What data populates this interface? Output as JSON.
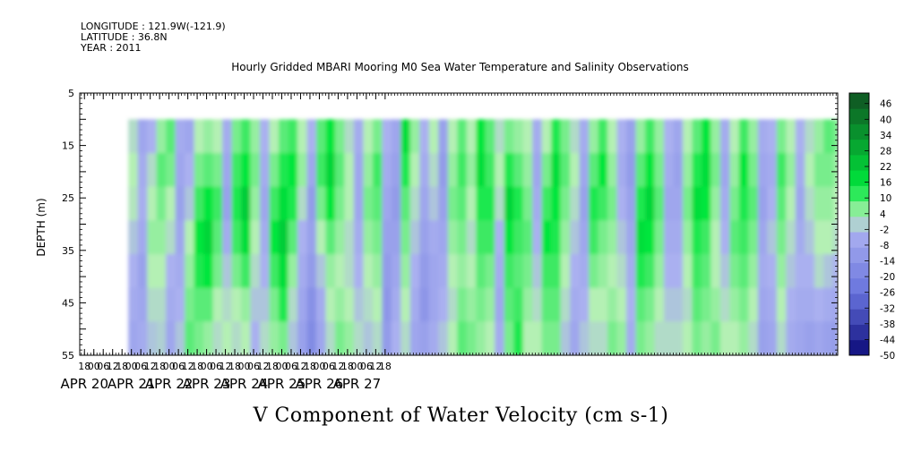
{
  "header": {
    "longitude": "LONGITUDE : 121.9W(-121.9)",
    "latitude": "LATITUDE : 36.8N",
    "year": "YEAR : 2011"
  },
  "colors": {
    "negative_strong": "#0a0a78",
    "negative_mid": "#6672dc",
    "negative_weak": "#aab0f0",
    "positive_weak": "#b4f0b4",
    "positive_mid": "#00e63c",
    "positive_strong": "#0f5a23",
    "missing": "#ffffff"
  },
  "chart_data": {
    "type": "heatmap",
    "title": "Hourly Gridded MBARI Mooring M0 Sea Water Temperature and Salinity Observations",
    "xlabel": "",
    "ylabel": "DEPTH (m)",
    "variable_label": "V Component of Water Velocity (cm s-1)",
    "x_hour_ticks": [
      "18",
      "00",
      "06",
      "12",
      "18",
      "00",
      "06",
      "12",
      "18",
      "00",
      "06",
      "12",
      "18",
      "00",
      "06",
      "12",
      "18",
      "00",
      "06",
      "12",
      "18",
      "00",
      "06",
      "12",
      "18",
      "00",
      "06",
      "12",
      "18",
      "00",
      "06",
      "12",
      "18"
    ],
    "x_day_labels": [
      "APR 20",
      "APR 21",
      "APR 22",
      "APR 23",
      "APR 24",
      "APR 25",
      "APR 26",
      "APR 27"
    ],
    "x_range_hours": [
      -9,
      475
    ],
    "data_start_hour": 22,
    "y_ticks": [
      5,
      15,
      25,
      35,
      45,
      55
    ],
    "y_range": [
      5,
      55
    ],
    "data_depth_range": [
      10,
      55
    ],
    "y_reversed": true,
    "colorbar_labels": [
      "46",
      "40",
      "34",
      "28",
      "22",
      "16",
      "10",
      "4",
      "-2",
      "-8",
      "-14",
      "-20",
      "-26",
      "-32",
      "-38",
      "-44",
      "-50"
    ],
    "colorbar_range": [
      -50,
      50
    ],
    "colorbar_step": 6,
    "columns": [
      {
        "h": 22,
        "v": [
          2,
          4,
          3,
          0,
          -2,
          -4,
          -6
        ]
      },
      {
        "h": 28,
        "v": [
          -6,
          -4,
          -3,
          -5,
          -8,
          -6,
          -4
        ]
      },
      {
        "h": 34,
        "v": [
          -2,
          2,
          4,
          6,
          4,
          2,
          0
        ]
      },
      {
        "h": 40,
        "v": [
          6,
          10,
          8,
          6,
          4,
          2,
          1
        ]
      },
      {
        "h": 46,
        "v": [
          10,
          8,
          4,
          2,
          -2,
          -4,
          -6
        ]
      },
      {
        "h": 52,
        "v": [
          -4,
          -6,
          -8,
          -6,
          -4,
          -2,
          0
        ]
      },
      {
        "h": 58,
        "v": [
          -6,
          -2,
          0,
          4,
          6,
          8,
          10
        ]
      },
      {
        "h": 64,
        "v": [
          4,
          8,
          12,
          16,
          14,
          10,
          8
        ]
      },
      {
        "h": 70,
        "v": [
          6,
          10,
          16,
          20,
          16,
          10,
          6
        ]
      },
      {
        "h": 76,
        "v": [
          4,
          8,
          12,
          10,
          8,
          4,
          2
        ]
      },
      {
        "h": 82,
        "v": [
          -4,
          -6,
          -8,
          -4,
          0,
          2,
          4
        ]
      },
      {
        "h": 88,
        "v": [
          8,
          12,
          14,
          12,
          8,
          4,
          2
        ]
      },
      {
        "h": 94,
        "v": [
          12,
          16,
          22,
          18,
          12,
          6,
          4
        ]
      },
      {
        "h": 100,
        "v": [
          6,
          8,
          6,
          4,
          2,
          0,
          -2
        ]
      },
      {
        "h": 106,
        "v": [
          -2,
          -4,
          -6,
          -4,
          -2,
          0,
          2
        ]
      },
      {
        "h": 112,
        "v": [
          4,
          8,
          12,
          16,
          12,
          8,
          6
        ]
      },
      {
        "h": 118,
        "v": [
          10,
          14,
          18,
          22,
          18,
          14,
          8
        ]
      },
      {
        "h": 124,
        "v": [
          12,
          16,
          14,
          10,
          6,
          2,
          0
        ]
      },
      {
        "h": 130,
        "v": [
          4,
          6,
          2,
          -2,
          -4,
          -6,
          -8
        ]
      },
      {
        "h": 136,
        "v": [
          -2,
          -6,
          -10,
          -8,
          -10,
          -14,
          -16
        ]
      },
      {
        "h": 142,
        "v": [
          10,
          12,
          8,
          4,
          0,
          -4,
          -6
        ]
      },
      {
        "h": 148,
        "v": [
          16,
          20,
          16,
          10,
          6,
          4,
          2
        ]
      },
      {
        "h": 154,
        "v": [
          8,
          10,
          8,
          6,
          4,
          6,
          8
        ]
      },
      {
        "h": 160,
        "v": [
          2,
          4,
          4,
          2,
          2,
          4,
          6
        ]
      },
      {
        "h": 166,
        "v": [
          -4,
          -6,
          -6,
          -4,
          -2,
          0,
          2
        ]
      },
      {
        "h": 172,
        "v": [
          4,
          6,
          8,
          6,
          4,
          2,
          0
        ]
      },
      {
        "h": 178,
        "v": [
          8,
          12,
          10,
          8,
          6,
          4,
          2
        ]
      },
      {
        "h": 184,
        "v": [
          -2,
          -4,
          -6,
          -8,
          -10,
          -12,
          -10
        ]
      },
      {
        "h": 190,
        "v": [
          -6,
          -8,
          -10,
          -8,
          -6,
          -4,
          -2
        ]
      },
      {
        "h": 196,
        "v": [
          18,
          14,
          10,
          8,
          6,
          4,
          2
        ]
      },
      {
        "h": 202,
        "v": [
          6,
          4,
          2,
          0,
          -2,
          -4,
          -6
        ]
      },
      {
        "h": 208,
        "v": [
          -2,
          -4,
          -6,
          -8,
          -10,
          -12,
          -8
        ]
      },
      {
        "h": 214,
        "v": [
          4,
          2,
          0,
          -4,
          -6,
          -6,
          -4
        ]
      },
      {
        "h": 220,
        "v": [
          -8,
          -10,
          -8,
          -6,
          -4,
          -2,
          0
        ]
      },
      {
        "h": 226,
        "v": [
          4,
          6,
          8,
          6,
          4,
          2,
          4
        ]
      },
      {
        "h": 232,
        "v": [
          10,
          12,
          10,
          8,
          6,
          8,
          10
        ]
      },
      {
        "h": 238,
        "v": [
          4,
          6,
          4,
          2,
          4,
          6,
          8
        ]
      },
      {
        "h": 244,
        "v": [
          16,
          18,
          14,
          12,
          10,
          8,
          6
        ]
      },
      {
        "h": 250,
        "v": [
          10,
          12,
          14,
          12,
          8,
          6,
          4
        ]
      },
      {
        "h": 256,
        "v": [
          2,
          4,
          2,
          -2,
          -4,
          -6,
          -4
        ]
      },
      {
        "h": 262,
        "v": [
          8,
          14,
          20,
          16,
          12,
          10,
          8
        ]
      },
      {
        "h": 268,
        "v": [
          6,
          10,
          14,
          12,
          10,
          12,
          14
        ]
      },
      {
        "h": 274,
        "v": [
          4,
          6,
          8,
          10,
          8,
          6,
          4
        ]
      },
      {
        "h": 280,
        "v": [
          -4,
          -6,
          -4,
          -2,
          0,
          2,
          4
        ]
      },
      {
        "h": 286,
        "v": [
          4,
          8,
          12,
          16,
          12,
          10,
          8
        ]
      },
      {
        "h": 292,
        "v": [
          14,
          18,
          16,
          14,
          12,
          10,
          8
        ]
      },
      {
        "h": 298,
        "v": [
          8,
          10,
          8,
          6,
          4,
          2,
          0
        ]
      },
      {
        "h": 304,
        "v": [
          2,
          4,
          2,
          0,
          -2,
          -4,
          -6
        ]
      },
      {
        "h": 310,
        "v": [
          -4,
          -6,
          -8,
          -6,
          -4,
          -2,
          0
        ]
      },
      {
        "h": 316,
        "v": [
          6,
          10,
          14,
          12,
          8,
          4,
          2
        ]
      },
      {
        "h": 322,
        "v": [
          12,
          16,
          12,
          8,
          6,
          4,
          2
        ]
      },
      {
        "h": 328,
        "v": [
          4,
          6,
          8,
          6,
          4,
          6,
          8
        ]
      },
      {
        "h": 334,
        "v": [
          -2,
          -4,
          -2,
          0,
          2,
          4,
          6
        ]
      },
      {
        "h": 340,
        "v": [
          -8,
          -10,
          -8,
          -6,
          -4,
          -2,
          -4
        ]
      },
      {
        "h": 346,
        "v": [
          6,
          10,
          14,
          18,
          14,
          10,
          8
        ]
      },
      {
        "h": 352,
        "v": [
          12,
          16,
          20,
          16,
          12,
          8,
          6
        ]
      },
      {
        "h": 358,
        "v": [
          6,
          8,
          10,
          8,
          6,
          4,
          2
        ]
      },
      {
        "h": 364,
        "v": [
          -2,
          -4,
          -6,
          -4,
          -2,
          0,
          2
        ]
      },
      {
        "h": 370,
        "v": [
          -6,
          -8,
          -6,
          -4,
          -2,
          0,
          2
        ]
      },
      {
        "h": 376,
        "v": [
          4,
          6,
          8,
          6,
          4,
          2,
          4
        ]
      },
      {
        "h": 382,
        "v": [
          10,
          14,
          18,
          14,
          12,
          10,
          8
        ]
      },
      {
        "h": 388,
        "v": [
          16,
          18,
          16,
          12,
          10,
          8,
          6
        ]
      },
      {
        "h": 394,
        "v": [
          6,
          8,
          6,
          4,
          4,
          6,
          8
        ]
      },
      {
        "h": 400,
        "v": [
          -4,
          -6,
          -4,
          -2,
          0,
          2,
          4
        ]
      },
      {
        "h": 406,
        "v": [
          4,
          6,
          8,
          10,
          8,
          6,
          4
        ]
      },
      {
        "h": 412,
        "v": [
          12,
          16,
          14,
          12,
          10,
          8,
          6
        ]
      },
      {
        "h": 418,
        "v": [
          6,
          8,
          10,
          8,
          6,
          4,
          2
        ]
      },
      {
        "h": 424,
        "v": [
          -4,
          -6,
          -8,
          -6,
          -4,
          -6,
          -8
        ]
      },
      {
        "h": 430,
        "v": [
          -2,
          -4,
          -2,
          0,
          -2,
          -4,
          -6
        ]
      },
      {
        "h": 436,
        "v": [
          8,
          12,
          10,
          8,
          6,
          4,
          2
        ]
      },
      {
        "h": 442,
        "v": [
          4,
          6,
          4,
          2,
          0,
          -2,
          -4
        ]
      },
      {
        "h": 448,
        "v": [
          -2,
          -4,
          -6,
          -4,
          -2,
          -4,
          -6
        ]
      },
      {
        "h": 454,
        "v": [
          2,
          4,
          2,
          0,
          -2,
          -4,
          -8
        ]
      },
      {
        "h": 460,
        "v": [
          6,
          8,
          6,
          4,
          2,
          -2,
          -6
        ]
      },
      {
        "h": 466,
        "v": [
          10,
          8,
          6,
          4,
          0,
          -4,
          -8
        ]
      },
      {
        "h": 472,
        "v": [
          8,
          6,
          4,
          2,
          -2,
          -6,
          -10
        ]
      }
    ]
  }
}
